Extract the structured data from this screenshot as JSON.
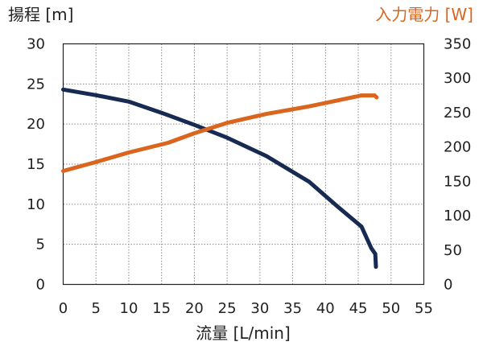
{
  "chart_data": {
    "type": "line",
    "title": "",
    "xlabel": "流量 [L/min]",
    "ylabel_left": "揚程 [m]",
    "ylabel_right": "入力電力 [W]",
    "xlim": [
      0,
      55
    ],
    "ylim_left": [
      0,
      30
    ],
    "ylim_right": [
      0,
      350
    ],
    "x_ticks": [
      "0",
      "5",
      "10",
      "15",
      "20",
      "25",
      "30",
      "35",
      "40",
      "45",
      "50",
      "55"
    ],
    "y_left_ticks": [
      "0",
      "5",
      "10",
      "15",
      "20",
      "25",
      "30"
    ],
    "y_right_ticks": [
      "0",
      "50",
      "100",
      "150",
      "200",
      "250",
      "300",
      "350"
    ],
    "grid": true,
    "series": [
      {
        "name": "揚程 [m]",
        "axis": "left",
        "color": "#172A52",
        "x": [
          0,
          5,
          10,
          15,
          20,
          25,
          31,
          37.5,
          42,
          45.5,
          47,
          47.6,
          47.7
        ],
        "y": [
          24.3,
          23.6,
          22.8,
          21.4,
          19.9,
          18.3,
          16,
          12.8,
          9.6,
          7.2,
          4.5,
          3.8,
          2.2
        ]
      },
      {
        "name": "入力電力 [W]",
        "axis": "right",
        "color": "#D9651E",
        "x": [
          0,
          5,
          10,
          16,
          20,
          25,
          31,
          37.5,
          42,
          45.5,
          47.5,
          47.8
        ],
        "y": [
          165,
          178,
          192,
          206,
          220,
          235,
          248,
          259,
          268,
          275,
          275,
          272
        ]
      }
    ]
  }
}
